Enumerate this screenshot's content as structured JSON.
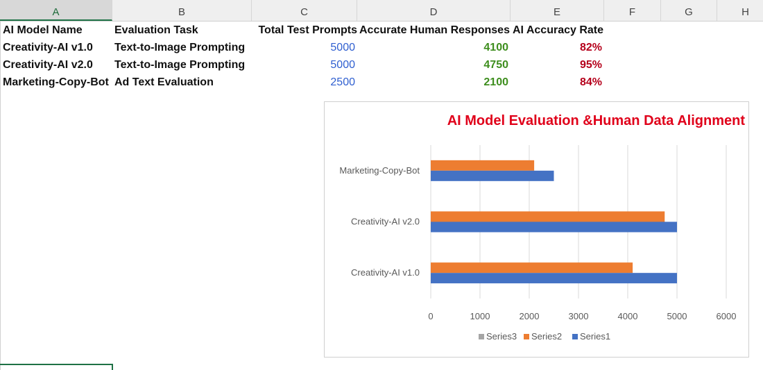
{
  "sheet": {
    "column_headers": [
      "A",
      "B",
      "C",
      "D",
      "E",
      "F",
      "G",
      "H"
    ],
    "active_column": "A",
    "header_row": [
      "AI Model Name",
      "Evaluation Task",
      "Total Test Prompts",
      "Accurate Human Responses",
      "AI Accuracy Rate"
    ],
    "rows": [
      {
        "model": "Creativity-AI v1.0",
        "task": "Text-to-Image Prompting",
        "prompts": "5000",
        "accurate": "4100",
        "rate": "82%"
      },
      {
        "model": "Creativity-AI v2.0",
        "task": "Text-to-Image Prompting",
        "prompts": "5000",
        "accurate": "4750",
        "rate": "95%"
      },
      {
        "model": "Marketing-Copy-Bot",
        "task": "Ad Text Evaluation",
        "prompts": "2500",
        "accurate": "2100",
        "rate": "84%"
      }
    ]
  },
  "chart_data": {
    "type": "bar",
    "orientation": "horizontal",
    "title": "AI Model Evaluation &Human Data Alignment",
    "categories": [
      "Creativity-AI v1.0",
      "Creativity-AI v2.0",
      "Marketing-Copy-Bot"
    ],
    "series": [
      {
        "name": "Series1",
        "values": [
          5000,
          5000,
          2500
        ],
        "color": "#4472c4"
      },
      {
        "name": "Series2",
        "values": [
          4100,
          4750,
          2100
        ],
        "color": "#ed7d31"
      },
      {
        "name": "Series3",
        "values": [
          82,
          95,
          84
        ],
        "color": "#a5a5a5"
      }
    ],
    "xlim": [
      0,
      6000
    ],
    "x_ticks": [
      "0",
      "1000",
      "2000",
      "3000",
      "4000",
      "5000",
      "6000"
    ],
    "grid": true,
    "legend": "bottom",
    "legend_order": [
      "Series3",
      "Series2",
      "Series1"
    ],
    "title_color": "#e0001a"
  }
}
